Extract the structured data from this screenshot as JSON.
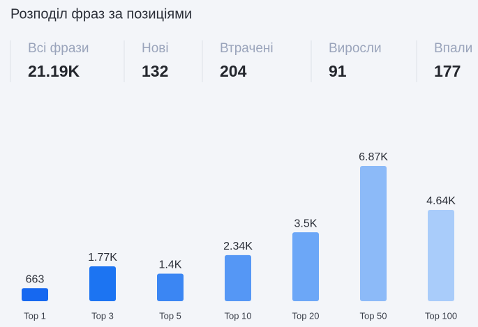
{
  "title": "Розподіл фраз за позиціями",
  "stats": [
    {
      "label": "Всі фрази",
      "value": "21.19K"
    },
    {
      "label": "Нові",
      "value": "132"
    },
    {
      "label": "Втрачені",
      "value": "204"
    },
    {
      "label": "Виросли",
      "value": "91"
    },
    {
      "label": "Впали",
      "value": "177"
    }
  ],
  "chart_data": {
    "type": "bar",
    "categories": [
      "Top 1",
      "Top 3",
      "Top 5",
      "Top 10",
      "Top 20",
      "Top 50",
      "Top 100"
    ],
    "values": [
      663,
      1770,
      1400,
      2340,
      3500,
      6870,
      4640
    ],
    "value_labels": [
      "663",
      "1.77K",
      "1.4K",
      "2.34K",
      "3.5K",
      "6.87K",
      "4.64K"
    ],
    "colors": [
      "#1668f0",
      "#1c74f2",
      "#3b86f3",
      "#5597f5",
      "#6ca7f7",
      "#8cbaf8",
      "#a9ccfa"
    ]
  }
}
